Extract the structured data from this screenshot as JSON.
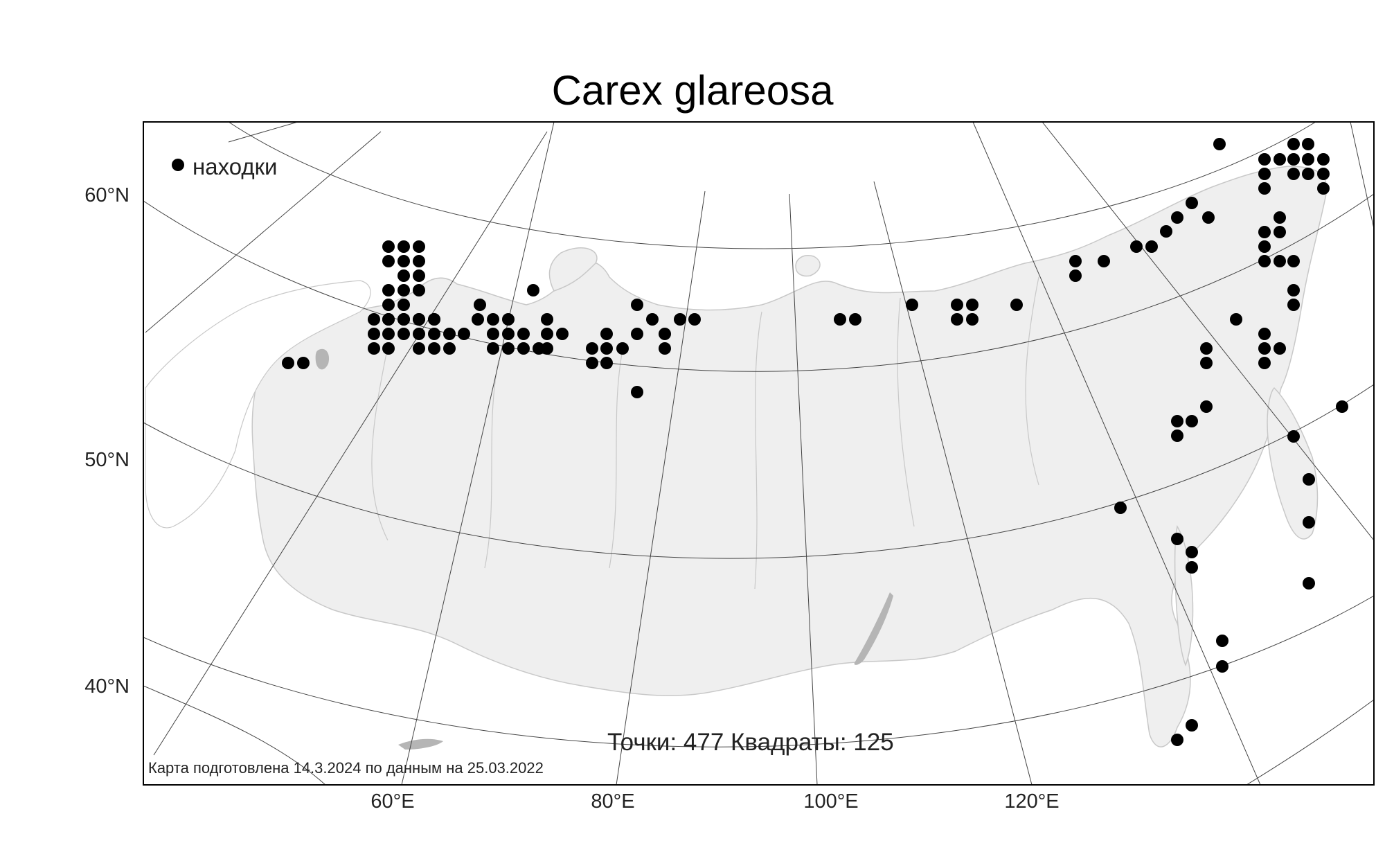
{
  "map": {
    "title": "Carex glareosa",
    "legend": {
      "label": "находки",
      "marker_color": "#000000"
    },
    "stats": {
      "text": "Точки: 477 Квадраты: 125"
    },
    "credit": "Карта подготовлена 14.3.2024 по данным на 25.03.2022",
    "lat_labels": [
      "60°N",
      "50°N",
      "40°N"
    ],
    "lon_labels": [
      "60°E",
      "80°E",
      "100°E",
      "120°E"
    ],
    "colors": {
      "land": "#efefef",
      "coast": "#c8c8c8",
      "grid": "#444444",
      "frame": "#000000"
    },
    "points": [
      [
        561,
        356
      ],
      [
        583,
        356
      ],
      [
        605,
        356
      ],
      [
        561,
        377
      ],
      [
        583,
        377
      ],
      [
        605,
        377
      ],
      [
        583,
        398
      ],
      [
        605,
        398
      ],
      [
        561,
        419
      ],
      [
        583,
        419
      ],
      [
        605,
        419
      ],
      [
        561,
        440
      ],
      [
        583,
        440
      ],
      [
        561,
        461
      ],
      [
        583,
        461
      ],
      [
        605,
        461
      ],
      [
        627,
        461
      ],
      [
        540,
        461
      ],
      [
        561,
        461
      ],
      [
        583,
        461
      ],
      [
        605,
        461
      ],
      [
        627,
        461
      ],
      [
        540,
        482
      ],
      [
        561,
        482
      ],
      [
        583,
        482
      ],
      [
        605,
        482
      ],
      [
        627,
        482
      ],
      [
        649,
        482
      ],
      [
        540,
        503
      ],
      [
        561,
        503
      ],
      [
        605,
        503
      ],
      [
        627,
        503
      ],
      [
        649,
        503
      ],
      [
        670,
        482
      ],
      [
        690,
        461
      ],
      [
        712,
        461
      ],
      [
        734,
        461
      ],
      [
        712,
        482
      ],
      [
        734,
        482
      ],
      [
        756,
        482
      ],
      [
        712,
        503
      ],
      [
        734,
        503
      ],
      [
        756,
        503
      ],
      [
        778,
        503
      ],
      [
        693,
        440
      ],
      [
        770,
        419
      ],
      [
        790,
        461
      ],
      [
        790,
        482
      ],
      [
        790,
        503
      ],
      [
        812,
        482
      ],
      [
        855,
        503
      ],
      [
        876,
        503
      ],
      [
        899,
        503
      ],
      [
        855,
        524
      ],
      [
        876,
        524
      ],
      [
        876,
        482
      ],
      [
        920,
        440
      ],
      [
        920,
        482
      ],
      [
        942,
        461
      ],
      [
        960,
        482
      ],
      [
        960,
        503
      ],
      [
        982,
        461
      ],
      [
        1003,
        461
      ],
      [
        920,
        566
      ],
      [
        416,
        524
      ],
      [
        438,
        524
      ],
      [
        1213,
        461
      ],
      [
        1235,
        461
      ],
      [
        1317,
        440
      ],
      [
        1382,
        440
      ],
      [
        1404,
        440
      ],
      [
        1382,
        461
      ],
      [
        1404,
        461
      ],
      [
        1468,
        440
      ],
      [
        1553,
        377
      ],
      [
        1553,
        398
      ],
      [
        1594,
        377
      ],
      [
        1641,
        356
      ],
      [
        1663,
        356
      ],
      [
        1684,
        334
      ],
      [
        1700,
        314
      ],
      [
        1721,
        293
      ],
      [
        1745,
        314
      ],
      [
        1761,
        208
      ],
      [
        1826,
        230
      ],
      [
        1848,
        230
      ],
      [
        1868,
        208
      ],
      [
        1889,
        208
      ],
      [
        1826,
        251
      ],
      [
        1868,
        251
      ],
      [
        1889,
        251
      ],
      [
        1911,
        230
      ],
      [
        1911,
        251
      ],
      [
        1868,
        230
      ],
      [
        1889,
        230
      ],
      [
        1826,
        272
      ],
      [
        1911,
        272
      ],
      [
        1848,
        314
      ],
      [
        1826,
        335
      ],
      [
        1848,
        335
      ],
      [
        1826,
        356
      ],
      [
        1826,
        377
      ],
      [
        1848,
        377
      ],
      [
        1868,
        377
      ],
      [
        1868,
        419
      ],
      [
        1868,
        440
      ],
      [
        1785,
        461
      ],
      [
        1826,
        482
      ],
      [
        1826,
        503
      ],
      [
        1848,
        503
      ],
      [
        1826,
        524
      ],
      [
        1742,
        503
      ],
      [
        1742,
        524
      ],
      [
        1742,
        587
      ],
      [
        1721,
        608
      ],
      [
        1700,
        608
      ],
      [
        1700,
        629
      ],
      [
        1618,
        733
      ],
      [
        1700,
        778
      ],
      [
        1721,
        797
      ],
      [
        1721,
        819
      ],
      [
        1765,
        925
      ],
      [
        1765,
        962
      ],
      [
        1721,
        1047
      ],
      [
        1700,
        1068
      ],
      [
        1868,
        630
      ],
      [
        1890,
        692
      ],
      [
        1890,
        754
      ],
      [
        1890,
        842
      ],
      [
        1938,
        587
      ]
    ]
  }
}
